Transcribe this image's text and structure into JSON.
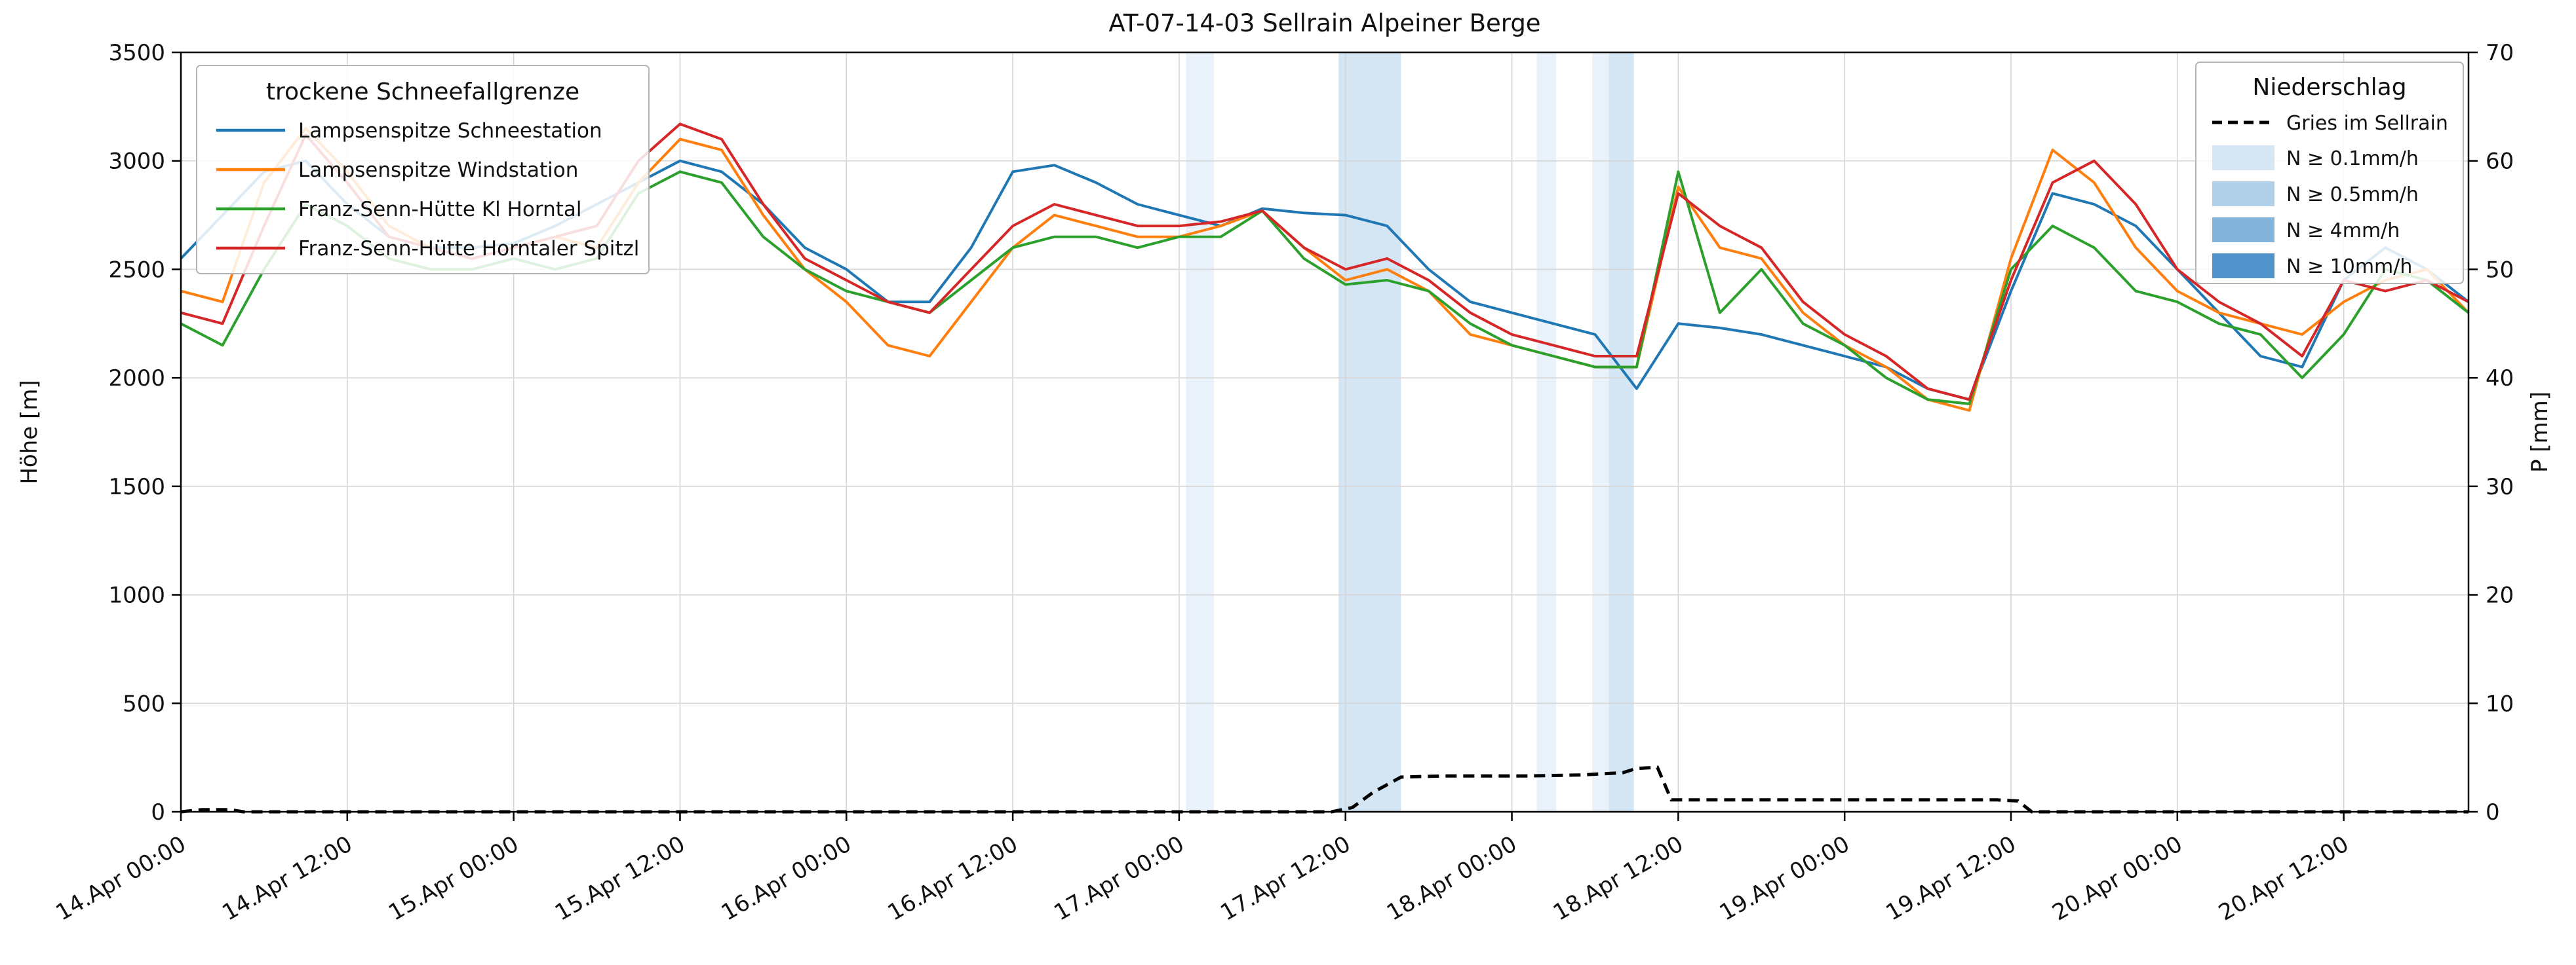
{
  "chart_data": {
    "type": "line",
    "title": "AT-07-14-03 Sellrain Alpeiner Berge",
    "x_axis": {
      "unit": "hours since 14.Apr 00:00",
      "range": [
        0,
        165
      ],
      "tick_labels": [
        {
          "h": 0,
          "label": "14.Apr 00:00"
        },
        {
          "h": 12,
          "label": "14.Apr 12:00"
        },
        {
          "h": 24,
          "label": "15.Apr 00:00"
        },
        {
          "h": 36,
          "label": "15.Apr 12:00"
        },
        {
          "h": 48,
          "label": "16.Apr 00:00"
        },
        {
          "h": 60,
          "label": "16.Apr 12:00"
        },
        {
          "h": 72,
          "label": "17.Apr 00:00"
        },
        {
          "h": 84,
          "label": "17.Apr 12:00"
        },
        {
          "h": 96,
          "label": "18.Apr 00:00"
        },
        {
          "h": 108,
          "label": "18.Apr 12:00"
        },
        {
          "h": 120,
          "label": "19.Apr 00:00"
        },
        {
          "h": 132,
          "label": "19.Apr 12:00"
        },
        {
          "h": 144,
          "label": "20.Apr 00:00"
        },
        {
          "h": 156,
          "label": "20.Apr 12:00"
        }
      ]
    },
    "left_axis": {
      "label": "Höhe [m]",
      "min": 0,
      "max": 3500,
      "step": 500
    },
    "right_axis": {
      "label": "P [mm]",
      "min": 0,
      "max": 70,
      "step": 10
    },
    "grid": true,
    "x_hours": [
      0,
      3,
      6,
      9,
      12,
      15,
      18,
      21,
      24,
      27,
      30,
      33,
      36,
      39,
      42,
      45,
      48,
      51,
      54,
      57,
      60,
      63,
      66,
      69,
      72,
      75,
      78,
      81,
      84,
      87,
      90,
      93,
      96,
      99,
      102,
      105,
      108,
      111,
      114,
      117,
      120,
      123,
      126,
      129,
      132,
      135,
      138,
      141,
      144,
      147,
      150,
      153,
      156,
      159,
      162,
      165
    ],
    "series": [
      {
        "name": "Lampsenspitze Schneestation",
        "color": "#1f77b4",
        "values": [
          2550,
          2750,
          2950,
          3000,
          2800,
          2650,
          2600,
          2600,
          2620,
          2700,
          2800,
          2900,
          3000,
          2950,
          2800,
          2600,
          2500,
          2350,
          2350,
          2600,
          2950,
          2980,
          2900,
          2800,
          2750,
          2700,
          2780,
          2760,
          2750,
          2700,
          2500,
          2350,
          2300,
          2250,
          2200,
          1950,
          2250,
          2230,
          2200,
          2150,
          2100,
          2050,
          1950,
          1900,
          2400,
          2850,
          2800,
          2700,
          2500,
          2300,
          2100,
          2050,
          2450,
          2600,
          2500,
          2350
        ]
      },
      {
        "name": "Lampsenspitze Windstation",
        "color": "#ff7f0e",
        "values": [
          2400,
          2350,
          2900,
          3150,
          2950,
          2700,
          2600,
          2550,
          2600,
          2650,
          2600,
          2900,
          3100,
          3050,
          2750,
          2500,
          2350,
          2150,
          2100,
          2350,
          2600,
          2750,
          2700,
          2650,
          2650,
          2700,
          2770,
          2600,
          2450,
          2500,
          2400,
          2200,
          2150,
          2100,
          2050,
          2050,
          2880,
          2600,
          2550,
          2300,
          2150,
          2050,
          1900,
          1850,
          2550,
          3050,
          2900,
          2600,
          2400,
          2300,
          2250,
          2200,
          2350,
          2450,
          2500,
          2300
        ]
      },
      {
        "name": "Franz-Senn-Hütte Kl Horntal",
        "color": "#2ca02c",
        "values": [
          2250,
          2150,
          2500,
          2800,
          2700,
          2550,
          2500,
          2500,
          2550,
          2500,
          2550,
          2850,
          2950,
          2900,
          2650,
          2500,
          2400,
          2350,
          2300,
          2450,
          2600,
          2650,
          2650,
          2600,
          2650,
          2650,
          2770,
          2550,
          2430,
          2450,
          2400,
          2250,
          2150,
          2100,
          2050,
          2050,
          2950,
          2300,
          2500,
          2250,
          2150,
          2000,
          1900,
          1880,
          2500,
          2700,
          2600,
          2400,
          2350,
          2250,
          2200,
          2000,
          2200,
          2500,
          2450,
          2300
        ]
      },
      {
        "name": "Franz-Senn-Hütte Horntaler Spitzl",
        "color": "#d62728",
        "values": [
          2300,
          2250,
          2700,
          3120,
          2900,
          2650,
          2600,
          2550,
          2600,
          2650,
          2700,
          3000,
          3170,
          3100,
          2800,
          2550,
          2450,
          2350,
          2300,
          2500,
          2700,
          2800,
          2750,
          2700,
          2700,
          2720,
          2770,
          2600,
          2500,
          2550,
          2450,
          2300,
          2200,
          2150,
          2100,
          2100,
          2850,
          2700,
          2600,
          2350,
          2200,
          2100,
          1950,
          1900,
          2450,
          2900,
          3000,
          2800,
          2500,
          2350,
          2250,
          2100,
          2450,
          2400,
          2450,
          2350
        ]
      }
    ],
    "precip_series": {
      "name": "Gries im Sellrain",
      "color": "#000000",
      "style": "dashed",
      "axis": "right",
      "points": [
        [
          0,
          0
        ],
        [
          1.5,
          0.2
        ],
        [
          3.5,
          0.2
        ],
        [
          4.5,
          0
        ],
        [
          83,
          0
        ],
        [
          84.5,
          0.4
        ],
        [
          86,
          1.8
        ],
        [
          88,
          3.2
        ],
        [
          91,
          3.3
        ],
        [
          97,
          3.3
        ],
        [
          101,
          3.4
        ],
        [
          104,
          3.6
        ],
        [
          105,
          4.0
        ],
        [
          106.5,
          4.1
        ],
        [
          107.5,
          1.1
        ],
        [
          131,
          1.1
        ],
        [
          132.5,
          1.0
        ],
        [
          133.5,
          0
        ],
        [
          165,
          0
        ]
      ]
    },
    "precip_bands": {
      "levels": [
        {
          "label": "N ≥ 0.1mm/h",
          "color": "#d7e6f5"
        },
        {
          "label": "N ≥ 0.5mm/h",
          "color": "#b0cfe9"
        },
        {
          "label": "N ≥ 4mm/h",
          "color": "#82b4dc"
        },
        {
          "label": "N ≥ 10mm/h",
          "color": "#5194cc"
        }
      ],
      "bands": [
        {
          "start_h": 72.5,
          "end_h": 74.5,
          "level": 0
        },
        {
          "start_h": 83.5,
          "end_h": 88.0,
          "level": 1
        },
        {
          "start_h": 97.8,
          "end_h": 99.2,
          "level": 0
        },
        {
          "start_h": 101.8,
          "end_h": 103.0,
          "level": 0
        },
        {
          "start_h": 103.0,
          "end_h": 104.8,
          "level": 1
        }
      ]
    },
    "legends": [
      {
        "title": "trockene Schneefallgrenze"
      },
      {
        "title": "Niederschlag"
      }
    ]
  }
}
